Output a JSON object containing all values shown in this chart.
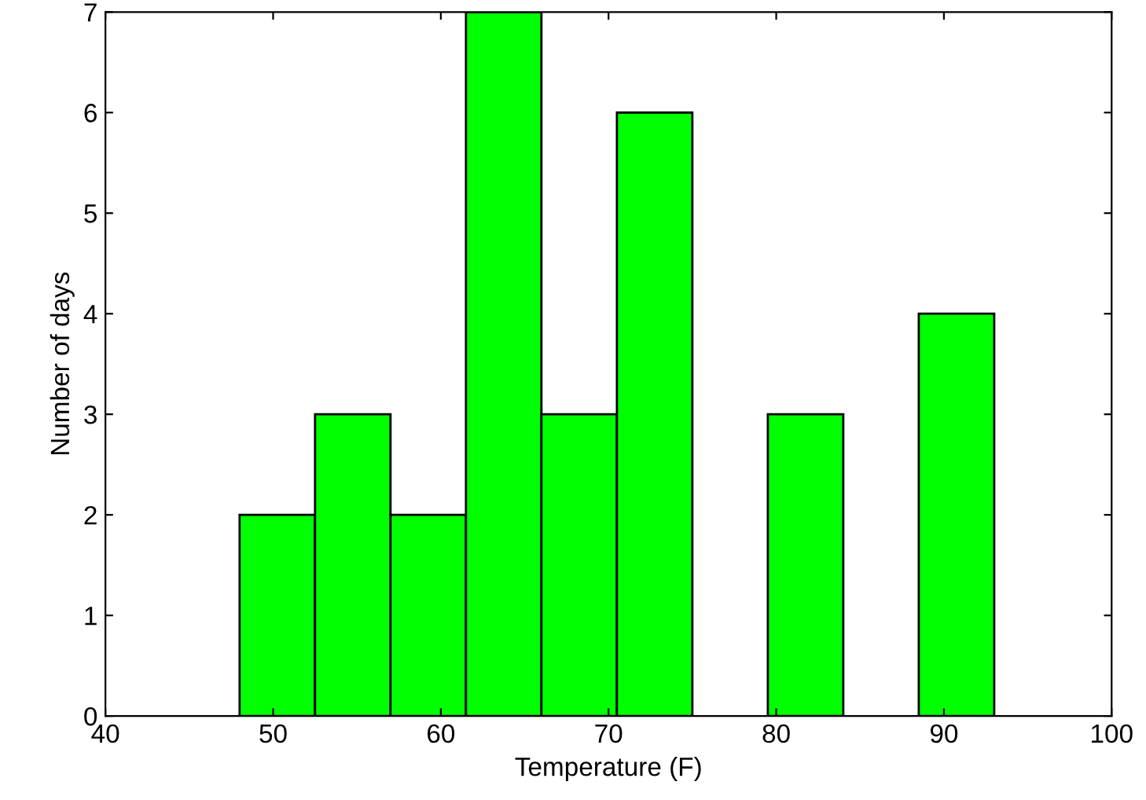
{
  "chart_data": {
    "type": "histogram",
    "xlabel": "Temperature (F)",
    "ylabel": "Number of days",
    "bins": [
      48,
      52.5,
      57,
      61.5,
      66,
      70.5,
      75,
      79.5,
      84,
      88.5,
      93
    ],
    "values": [
      2,
      3,
      2,
      7,
      3,
      6,
      0,
      3,
      0,
      4
    ],
    "color": "#00ff00",
    "xlim": [
      40,
      100
    ],
    "xticks": [
      40,
      50,
      60,
      70,
      80,
      90,
      100
    ],
    "ylim": [
      0,
      7
    ],
    "yticks": [
      0,
      1,
      2,
      3,
      4,
      5,
      6,
      7
    ],
    "grid": false
  }
}
